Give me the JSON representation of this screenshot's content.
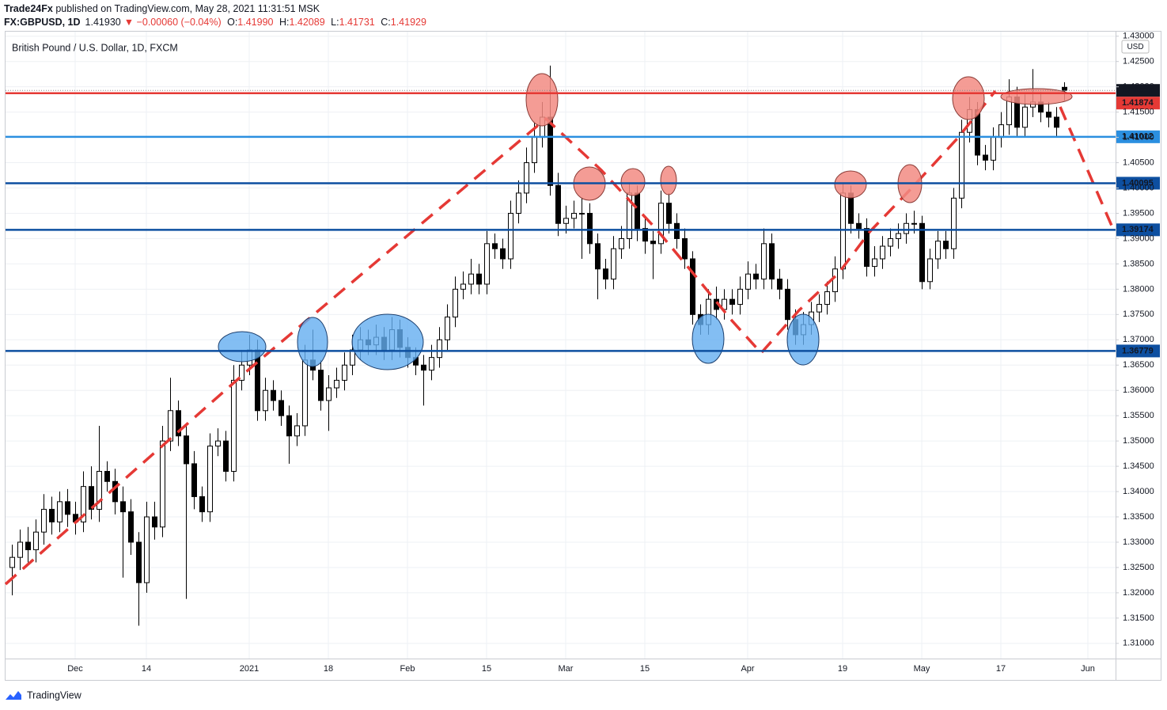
{
  "header": {
    "author": "Trade24Fx",
    "published": " published on TradingView.com, May 28, 2021 11:31:51 MSK",
    "symbol": "FX:GBPUSD, 1D",
    "price": "1.41930",
    "change": "▼ −0.00060 (−0.04%)",
    "ohlc": [
      {
        "key": "O:",
        "value": "1.41990"
      },
      {
        "key": "H:",
        "value": "1.42089"
      },
      {
        "key": "L:",
        "value": "1.41731"
      },
      {
        "key": "C:",
        "value": "1.41929"
      }
    ],
    "brand": "TradingView"
  },
  "chart_data": {
    "type": "candlestick",
    "title": "British Pound / U.S. Dollar, 1D, FXCM",
    "currency": "USD",
    "categories": [
      null,
      null,
      null,
      null,
      null,
      null,
      null,
      null,
      "Dec",
      null,
      null,
      null,
      null,
      null,
      null,
      null,
      null,
      "14",
      null,
      null,
      null,
      null,
      null,
      null,
      null,
      null,
      null,
      null,
      null,
      null,
      "2021",
      null,
      null,
      null,
      null,
      null,
      null,
      null,
      null,
      null,
      "18",
      null,
      null,
      null,
      null,
      null,
      null,
      null,
      null,
      null,
      "Feb",
      null,
      null,
      null,
      null,
      null,
      null,
      null,
      null,
      null,
      "15",
      null,
      null,
      null,
      null,
      null,
      null,
      null,
      null,
      null,
      "Mar",
      null,
      null,
      null,
      null,
      null,
      null,
      null,
      null,
      null,
      "15",
      null,
      null,
      null,
      null,
      null,
      null,
      null,
      null,
      null,
      null,
      null,
      null,
      "Apr",
      null,
      null,
      null,
      null,
      null,
      null,
      null,
      null,
      null,
      null,
      null,
      "19",
      null,
      null,
      null,
      null,
      null,
      null,
      null,
      null,
      null,
      "May",
      null,
      null,
      null,
      null,
      null,
      null,
      null,
      null,
      null,
      "17",
      null,
      null,
      null,
      null,
      null,
      null,
      null,
      null,
      null,
      null,
      "Jun"
    ],
    "open": [
      1.325,
      1.327,
      1.33,
      1.3285,
      1.332,
      1.3365,
      1.334,
      1.338,
      1.3355,
      1.334,
      1.341,
      1.3365,
      1.344,
      1.342,
      1.338,
      1.336,
      1.33,
      1.322,
      1.335,
      1.333,
      1.35,
      1.356,
      1.351,
      1.3455,
      1.339,
      1.336,
      1.349,
      1.35,
      1.344,
      1.362,
      1.365,
      1.368,
      1.356,
      1.36,
      1.358,
      1.355,
      1.351,
      1.353,
      1.366,
      1.364,
      1.358,
      1.3605,
      1.362,
      1.365,
      1.368,
      1.37,
      1.369,
      1.3705,
      1.368,
      1.372,
      1.3685,
      1.3665,
      1.365,
      1.364,
      1.3665,
      1.37,
      1.3745,
      1.38,
      1.381,
      1.383,
      1.381,
      1.389,
      1.388,
      1.386,
      1.395,
      1.399,
      1.405,
      1.41,
      1.414,
      1.4005,
      1.393,
      1.394,
      1.395,
      1.395,
      1.389,
      1.384,
      1.382,
      1.388,
      1.39,
      1.399,
      1.392,
      1.3895,
      1.389,
      1.397,
      1.393,
      1.39,
      1.386,
      1.375,
      1.373,
      1.378,
      1.376,
      1.378,
      1.377,
      1.38,
      1.383,
      1.382,
      1.389,
      1.382,
      1.38,
      1.374,
      1.371,
      1.373,
      1.3755,
      1.377,
      1.3795,
      1.384,
      1.399,
      1.393,
      1.392,
      1.3845,
      1.386,
      1.3885,
      1.39,
      1.391,
      1.393,
      1.393,
      1.3815,
      1.386,
      1.3895,
      1.388,
      1.398,
      1.411,
      1.4155,
      1.4065,
      1.4055,
      1.41,
      1.4125,
      1.418,
      1.412,
      1.416,
      1.417,
      1.415,
      1.414,
      1.4199,
      null,
      null,
      null
    ],
    "high": [
      1.3295,
      1.3325,
      1.333,
      1.3345,
      1.3395,
      1.339,
      1.34,
      1.3405,
      1.338,
      1.344,
      1.345,
      1.353,
      1.346,
      1.3445,
      1.341,
      1.3385,
      1.332,
      1.338,
      1.338,
      1.353,
      1.3625,
      1.358,
      1.353,
      1.348,
      1.341,
      1.3515,
      1.3525,
      1.352,
      1.365,
      1.368,
      1.371,
      1.37,
      1.3625,
      1.362,
      1.36,
      1.357,
      1.3555,
      1.369,
      1.372,
      1.366,
      1.363,
      1.3645,
      1.3675,
      1.371,
      1.3725,
      1.372,
      1.373,
      1.3725,
      1.3745,
      1.374,
      1.3705,
      1.3685,
      1.367,
      1.369,
      1.3725,
      1.377,
      1.3825,
      1.3835,
      1.386,
      1.385,
      1.3915,
      1.391,
      1.39,
      1.3975,
      1.4015,
      1.408,
      1.413,
      1.417,
      1.4242,
      1.403,
      1.3965,
      1.3975,
      1.398,
      1.397,
      1.391,
      1.386,
      1.3905,
      1.3925,
      1.401,
      1.4005,
      1.394,
      1.3915,
      1.3995,
      1.399,
      1.395,
      1.392,
      1.3875,
      1.377,
      1.38,
      1.3805,
      1.38,
      1.38,
      1.3825,
      1.3855,
      1.385,
      1.392,
      1.391,
      1.384,
      1.382,
      1.376,
      1.3755,
      1.3775,
      1.379,
      1.3815,
      1.3865,
      1.401,
      1.4005,
      1.395,
      1.394,
      1.3885,
      1.3905,
      1.392,
      1.393,
      1.395,
      1.3955,
      1.3945,
      1.388,
      1.3915,
      1.3915,
      1.4,
      1.4135,
      1.418,
      1.417,
      1.4085,
      1.412,
      1.415,
      1.4215,
      1.42,
      1.4185,
      1.4235,
      1.419,
      1.417,
      1.416,
      1.4209,
      null,
      null,
      null
    ],
    "low": [
      1.3195,
      1.3245,
      1.326,
      1.326,
      1.3295,
      1.3315,
      1.332,
      1.333,
      1.3315,
      1.332,
      1.3345,
      1.334,
      1.34,
      1.3355,
      1.323,
      1.3275,
      1.3135,
      1.32,
      1.3305,
      1.331,
      1.348,
      1.349,
      1.3188,
      1.3365,
      1.334,
      1.334,
      1.347,
      1.342,
      1.342,
      1.36,
      1.363,
      1.354,
      1.354,
      1.356,
      1.353,
      1.3455,
      1.349,
      1.351,
      1.362,
      1.356,
      1.352,
      1.3585,
      1.36,
      1.363,
      1.366,
      1.367,
      1.367,
      1.366,
      1.366,
      1.3665,
      1.3645,
      1.363,
      1.357,
      1.362,
      1.3645,
      1.368,
      1.3725,
      1.378,
      1.379,
      1.379,
      1.379,
      1.386,
      1.384,
      1.384,
      1.393,
      1.397,
      1.403,
      1.408,
      1.3985,
      1.3905,
      1.391,
      1.392,
      1.386,
      1.387,
      1.378,
      1.38,
      1.38,
      1.386,
      1.388,
      1.3895,
      1.387,
      1.382,
      1.387,
      1.391,
      1.388,
      1.384,
      1.373,
      1.371,
      1.371,
      1.374,
      1.374,
      1.375,
      1.375,
      1.378,
      1.38,
      1.38,
      1.38,
      1.378,
      1.372,
      1.369,
      1.369,
      1.371,
      1.3735,
      1.375,
      1.3775,
      1.382,
      1.391,
      1.39,
      1.3825,
      1.3825,
      1.384,
      1.3865,
      1.388,
      1.389,
      1.391,
      1.38,
      1.38,
      1.384,
      1.386,
      1.386,
      1.396,
      1.409,
      1.4045,
      1.4035,
      1.4035,
      1.408,
      1.4105,
      1.41,
      1.41,
      1.414,
      1.413,
      1.412,
      1.41,
      1.4173,
      null,
      null,
      null
    ],
    "close": [
      1.327,
      1.33,
      1.3285,
      1.332,
      1.3365,
      1.334,
      1.338,
      1.3355,
      1.334,
      1.341,
      1.3365,
      1.344,
      1.342,
      1.338,
      1.336,
      1.33,
      1.322,
      1.335,
      1.333,
      1.35,
      1.356,
      1.351,
      1.3455,
      1.339,
      1.336,
      1.349,
      1.35,
      1.344,
      1.362,
      1.365,
      1.368,
      1.356,
      1.36,
      1.358,
      1.355,
      1.351,
      1.353,
      1.366,
      1.364,
      1.358,
      1.3605,
      1.362,
      1.365,
      1.368,
      1.37,
      1.369,
      1.3705,
      1.368,
      1.372,
      1.3685,
      1.3665,
      1.365,
      1.364,
      1.3665,
      1.37,
      1.3745,
      1.38,
      1.381,
      1.383,
      1.381,
      1.389,
      1.388,
      1.386,
      1.395,
      1.399,
      1.405,
      1.41,
      1.414,
      1.4005,
      1.393,
      1.394,
      1.395,
      1.395,
      1.389,
      1.384,
      1.382,
      1.388,
      1.39,
      1.399,
      1.392,
      1.3895,
      1.389,
      1.397,
      1.393,
      1.39,
      1.386,
      1.375,
      1.373,
      1.378,
      1.376,
      1.378,
      1.377,
      1.38,
      1.383,
      1.382,
      1.389,
      1.382,
      1.38,
      1.374,
      1.371,
      1.373,
      1.3755,
      1.377,
      1.3795,
      1.384,
      1.399,
      1.393,
      1.392,
      1.3845,
      1.386,
      1.3885,
      1.39,
      1.391,
      1.393,
      1.393,
      1.3815,
      1.386,
      1.3895,
      1.388,
      1.398,
      1.411,
      1.4155,
      1.4065,
      1.4055,
      1.41,
      1.4125,
      1.418,
      1.412,
      1.416,
      1.417,
      1.415,
      1.414,
      1.412,
      1.4193,
      null,
      null,
      null
    ],
    "up_color": "#ffffff",
    "down_color": "#000000",
    "ylim": [
      1.307,
      1.4309
    ],
    "yticks": [
      {
        "value": 1.31,
        "label": "1.31000"
      },
      {
        "value": 1.315,
        "label": "1.31500"
      },
      {
        "value": 1.32,
        "label": "1.32000"
      },
      {
        "value": 1.325,
        "label": "1.32500"
      },
      {
        "value": 1.33,
        "label": "1.33000"
      },
      {
        "value": 1.335,
        "label": "1.33500"
      },
      {
        "value": 1.34,
        "label": "1.34000"
      },
      {
        "value": 1.345,
        "label": "1.34500"
      },
      {
        "value": 1.35,
        "label": "1.35000"
      },
      {
        "value": 1.355,
        "label": "1.35500"
      },
      {
        "value": 1.36,
        "label": "1.36000"
      },
      {
        "value": 1.365,
        "label": "1.36500"
      },
      {
        "value": 1.37,
        "label": "1.37000"
      },
      {
        "value": 1.375,
        "label": "1.37500"
      },
      {
        "value": 1.38,
        "label": "1.38000"
      },
      {
        "value": 1.385,
        "label": "1.38500"
      },
      {
        "value": 1.39,
        "label": "1.39000"
      },
      {
        "value": 1.395,
        "label": "1.39500"
      },
      {
        "value": 1.4,
        "label": "1.40000"
      },
      {
        "value": 1.405,
        "label": "1.40500"
      },
      {
        "value": 1.41,
        "label": "1.41000"
      },
      {
        "value": 1.415,
        "label": "1.41500"
      },
      {
        "value": 1.42,
        "label": "1.42000"
      },
      {
        "value": 1.425,
        "label": "1.42500"
      },
      {
        "value": 1.43,
        "label": "1.43000"
      }
    ],
    "grid": true,
    "last_price": 1.41929,
    "levels": [
      {
        "value": 1.41874,
        "color": "#e53935"
      },
      {
        "value": 1.41012,
        "color": "#2b8fe0"
      },
      {
        "value": 1.40095,
        "color": "#0d4fa0"
      },
      {
        "value": 1.39174,
        "color": "#0d4fa0"
      },
      {
        "value": 1.36779,
        "color": "#0d4fa0"
      }
    ]
  }
}
